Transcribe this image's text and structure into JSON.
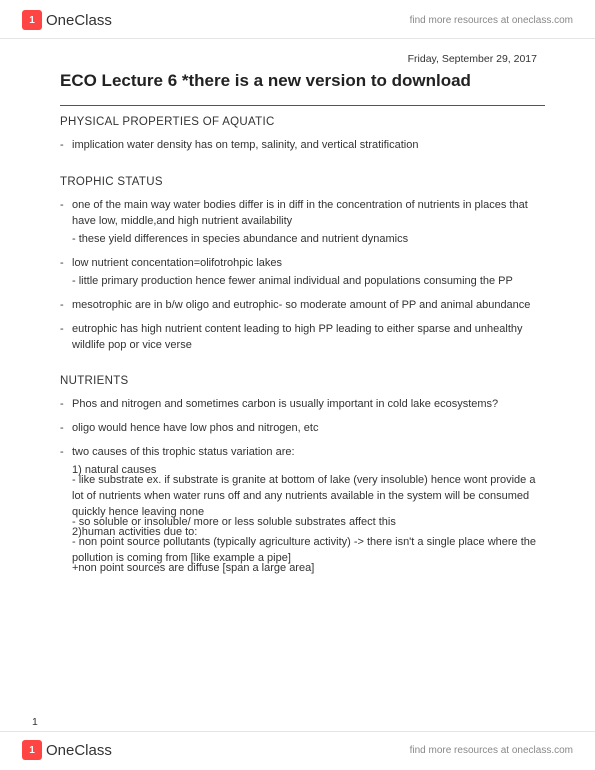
{
  "header": {
    "brand_name": "OneClass",
    "link_text": "find more resources at oneclass.com"
  },
  "meta": {
    "date": "Friday, September 29, 2017",
    "title": "ECO Lecture 6 *there is a new version to download",
    "page_number": "1"
  },
  "sections": {
    "s1": {
      "heading": "PHYSICAL PROPERTIES OF AQUATIC",
      "i1": "implication water density has on temp, salinity, and vertical stratification"
    },
    "s2": {
      "heading": "TROPHIC STATUS",
      "i1": "one of the main way water bodies differ is in diff in the concentration of nutrients in places that have low, middle,and high nutrient availability",
      "i1s1": "- these yield differences in species abundance and nutrient dynamics",
      "i2": "low nutrient concentation=olifotrohpic lakes",
      "i2s1": "- little primary production hence fewer animal individual and populations consuming the PP",
      "i3": "mesotrophic are in b/w oligo and eutrophic- so moderate amount of PP and animal abundance",
      "i4": "eutrophic has high nutrient content leading to high PP leading to either sparse and unhealthy wildlife pop or vice verse"
    },
    "s3": {
      "heading": "NUTRIENTS",
      "i1": "Phos and nitrogen and sometimes carbon is usually important in cold lake ecosystems?",
      "i2": "oligo would hence have low phos and nitrogen, etc",
      "i3": "two causes of this trophic status variation are:",
      "i3s1": "1) natural causes",
      "i3s2": "- like substrate ex. if substrate is granite at bottom of lake (very insoluble) hence wont provide a lot of nutrients when water runs off and any nutrients available in the system will be consumed quickly hence leaving none",
      "i3s3": "- so soluble or insoluble/ more or less soluble substrates affect this",
      "i3s4": "2)human activities due to:",
      "i3s5": "- non point source pollutants (typically agriculture activity) -> there isn't a single place where the pollution is coming from [like example a pipe]",
      "i3s6": "+non point sources are diffuse [span a large area]"
    }
  },
  "footer": {
    "brand_name": "OneClass",
    "link_text": "find more resources at oneclass.com"
  }
}
